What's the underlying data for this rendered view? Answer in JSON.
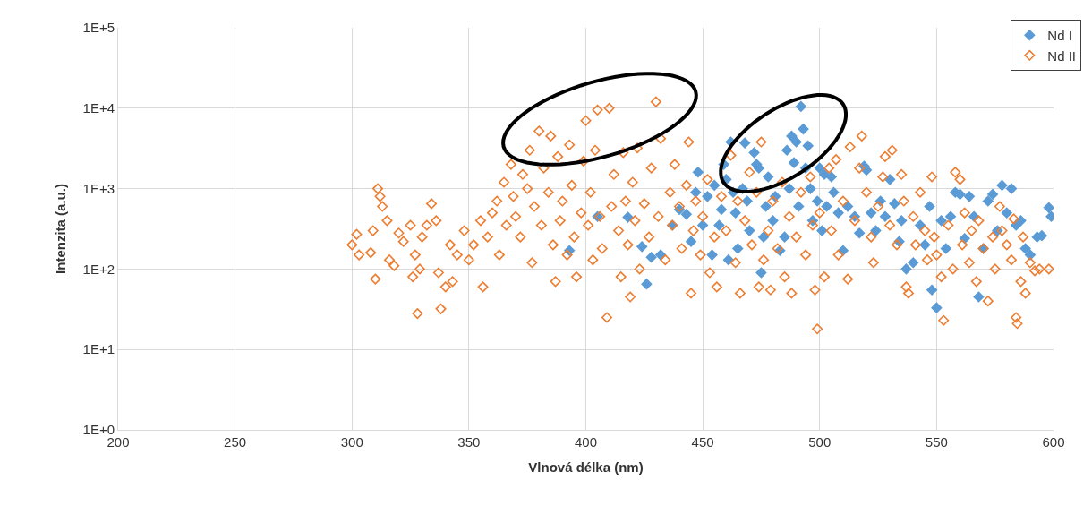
{
  "chart_data": {
    "type": "scatter",
    "xlabel": "Vlnová délka (nm)",
    "ylabel": "Intenzita (a.u.)",
    "xlim": [
      200,
      600
    ],
    "xticks": [
      200,
      250,
      300,
      350,
      400,
      450,
      500,
      550,
      600
    ],
    "ylim": [
      1,
      100000
    ],
    "yticks": [
      {
        "value": 1,
        "label": "1E+0"
      },
      {
        "value": 10,
        "label": "1E+1"
      },
      {
        "value": 100,
        "label": "1E+2"
      },
      {
        "value": 1000,
        "label": "1E+3"
      },
      {
        "value": 10000,
        "label": "1E+4"
      },
      {
        "value": 100000,
        "label": "1E+5"
      }
    ],
    "log": "y",
    "grid": true,
    "legend": "top right",
    "marker": "diamond",
    "series": [
      {
        "name": "Nd I",
        "color": "#5b9bd5",
        "x": [
          393,
          405,
          418,
          424,
          426,
          428,
          432,
          437,
          440,
          443,
          445,
          447,
          448,
          450,
          452,
          454,
          455,
          457,
          458,
          459,
          460,
          461,
          462,
          463,
          464,
          465,
          467,
          468,
          469,
          470,
          472,
          473,
          474,
          475,
          476,
          477,
          478,
          480,
          481,
          483,
          485,
          486,
          487,
          488,
          489,
          490,
          491,
          492,
          493,
          494,
          495,
          496,
          497,
          499,
          500,
          501,
          502,
          503,
          505,
          506,
          508,
          510,
          512,
          515,
          517,
          519,
          520,
          522,
          524,
          526,
          528,
          530,
          532,
          534,
          535,
          537,
          540,
          543,
          545,
          547,
          548,
          550,
          552,
          554,
          556,
          558,
          560,
          562,
          564,
          566,
          568,
          570,
          572,
          574,
          576,
          578,
          580,
          582,
          584,
          586,
          588,
          590,
          593,
          595,
          598,
          599
        ],
        "values": [
          170,
          450,
          440,
          190,
          65,
          140,
          150,
          350,
          550,
          480,
          220,
          900,
          1600,
          350,
          800,
          150,
          1100,
          350,
          550,
          2000,
          1300,
          130,
          3800,
          900,
          500,
          180,
          1000,
          3700,
          700,
          300,
          2800,
          2000,
          1800,
          90,
          250,
          600,
          1400,
          400,
          800,
          170,
          250,
          3000,
          1000,
          4500,
          2100,
          3800,
          600,
          10500,
          5500,
          1800,
          3400,
          1000,
          400,
          700,
          1800,
          300,
          1500,
          600,
          1400,
          900,
          500,
          170,
          600,
          450,
          280,
          1900,
          1700,
          500,
          300,
          700,
          450,
          1300,
          650,
          220,
          400,
          100,
          120,
          350,
          200,
          600,
          55,
          33,
          400,
          180,
          450,
          900,
          850,
          240,
          800,
          450,
          45,
          180,
          700,
          850,
          300,
          1100,
          500,
          1000,
          350,
          400,
          180,
          150,
          250,
          260,
          580,
          450
        ]
      },
      {
        "name": "Nd II",
        "color": "#ed7d31",
        "x": [
          300,
          302,
          303,
          308,
          309,
          310,
          311,
          312,
          313,
          315,
          316,
          318,
          320,
          322,
          325,
          326,
          327,
          328,
          329,
          330,
          332,
          334,
          336,
          337,
          338,
          340,
          342,
          343,
          345,
          348,
          350,
          352,
          355,
          356,
          358,
          360,
          362,
          363,
          365,
          366,
          368,
          369,
          370,
          372,
          373,
          375,
          376,
          377,
          378,
          380,
          381,
          382,
          384,
          385,
          386,
          387,
          388,
          389,
          390,
          392,
          393,
          394,
          395,
          396,
          398,
          399,
          400,
          401,
          402,
          403,
          404,
          405,
          406,
          407,
          409,
          410,
          411,
          412,
          414,
          415,
          416,
          417,
          418,
          419,
          420,
          421,
          422,
          423,
          425,
          427,
          428,
          430,
          431,
          432,
          434,
          436,
          437,
          438,
          440,
          441,
          443,
          444,
          445,
          446,
          447,
          449,
          450,
          452,
          453,
          455,
          456,
          458,
          460,
          462,
          464,
          465,
          466,
          468,
          470,
          471,
          473,
          474,
          475,
          476,
          478,
          479,
          480,
          482,
          484,
          485,
          487,
          488,
          490,
          492,
          494,
          496,
          497,
          498,
          499,
          500,
          502,
          504,
          505,
          507,
          508,
          510,
          512,
          513,
          515,
          517,
          518,
          520,
          522,
          523,
          525,
          527,
          528,
          530,
          531,
          533,
          535,
          536,
          537,
          538,
          540,
          541,
          543,
          545,
          546,
          548,
          549,
          550,
          552,
          553,
          555,
          557,
          558,
          560,
          561,
          562,
          564,
          565,
          567,
          568,
          570,
          572,
          574,
          575,
          577,
          578,
          580,
          582,
          583,
          584,
          584.5,
          586,
          587,
          588,
          590,
          592,
          594,
          598
        ],
        "values": [
          200,
          270,
          150,
          160,
          300,
          75,
          1000,
          800,
          600,
          400,
          130,
          110,
          280,
          220,
          350,
          80,
          150,
          28,
          100,
          250,
          350,
          650,
          400,
          90,
          32,
          60,
          200,
          70,
          150,
          300,
          130,
          200,
          400,
          60,
          250,
          500,
          700,
          150,
          1200,
          350,
          2000,
          800,
          450,
          250,
          1500,
          1000,
          3000,
          120,
          600,
          5200,
          350,
          1800,
          900,
          4500,
          200,
          70,
          2500,
          400,
          700,
          150,
          3500,
          1100,
          250,
          80,
          500,
          2200,
          7000,
          350,
          900,
          130,
          3000,
          9500,
          450,
          180,
          25,
          10000,
          600,
          1500,
          300,
          80,
          2800,
          700,
          200,
          45,
          1200,
          400,
          3200,
          100,
          650,
          250,
          1800,
          12000,
          450,
          4200,
          130,
          900,
          350,
          2000,
          600,
          180,
          1100,
          3800,
          50,
          300,
          700,
          150,
          450,
          1300,
          90,
          250,
          60,
          800,
          300,
          2600,
          120,
          700,
          50,
          400,
          1600,
          200,
          900,
          60,
          3800,
          130,
          300,
          55,
          700,
          180,
          1200,
          80,
          450,
          50,
          250,
          900,
          150,
          1400,
          350,
          55,
          18,
          500,
          80,
          1800,
          300,
          2300,
          150,
          700,
          75,
          3300,
          400,
          1800,
          4500,
          900,
          250,
          120,
          600,
          1400,
          2500,
          350,
          3000,
          200,
          1500,
          700,
          60,
          50,
          450,
          200,
          900,
          300,
          130,
          1400,
          250,
          150,
          80,
          23,
          350,
          100,
          1600,
          1300,
          200,
          500,
          120,
          300,
          70,
          400,
          180,
          40,
          250,
          100,
          600,
          300,
          200,
          130,
          420,
          25,
          21,
          70,
          250,
          50,
          120,
          95,
          100,
          100
        ]
      }
    ]
  }
}
